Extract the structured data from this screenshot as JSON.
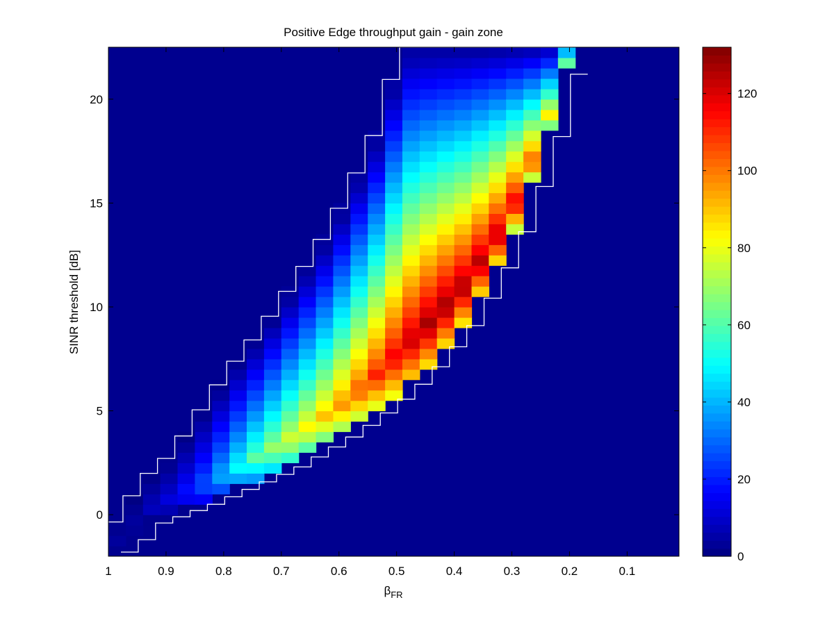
{
  "chart_data": {
    "type": "heatmap",
    "title": "Positive Edge throughput gain - gain zone",
    "xlabel": {
      "main": "β",
      "subscript": "FR"
    },
    "ylabel": "SINR threshold [dB]",
    "xlim": [
      1,
      0.01
    ],
    "x_reversed": true,
    "ylim": [
      -2,
      22.5
    ],
    "x_ticks": [
      1,
      0.9,
      0.8,
      0.7,
      0.6,
      0.5,
      0.4,
      0.3,
      0.2,
      0.1
    ],
    "x_tick_labels": [
      "1",
      "0.9",
      "0.8",
      "0.7",
      "0.6",
      "0.5",
      "0.4",
      "0.3",
      "0.2",
      "0.1"
    ],
    "y_ticks": [
      0,
      5,
      10,
      15,
      20
    ],
    "y_tick_labels": [
      "0",
      "5",
      "10",
      "15",
      "20"
    ],
    "colormap": "jet",
    "background_color": "#00008f",
    "boundary_color": "#ffffff",
    "colorbar": {
      "range": [
        0,
        132
      ],
      "ticks": [
        0,
        20,
        40,
        60,
        80,
        100,
        120
      ],
      "tick_labels": [
        "0",
        "20",
        "40",
        "60",
        "80",
        "100",
        "120"
      ],
      "placement": "right"
    },
    "grid": false,
    "gain_zone": {
      "description_of_axes": "beta in (0,1], SINR threshold in dB",
      "y_step_db": 0.5,
      "x_step": 0.03,
      "lower_boundary_points": [
        [
          1.0,
          -1.5
        ],
        [
          0.97,
          -0.9
        ],
        [
          0.94,
          -0.1
        ],
        [
          0.9,
          0.3
        ],
        [
          0.85,
          0.8
        ],
        [
          0.8,
          1.4
        ],
        [
          0.75,
          2.0
        ],
        [
          0.7,
          2.6
        ],
        [
          0.65,
          3.4
        ],
        [
          0.6,
          4.2
        ],
        [
          0.55,
          5.2
        ],
        [
          0.5,
          6.3
        ],
        [
          0.45,
          7.7
        ],
        [
          0.4,
          9.4
        ],
        [
          0.35,
          11.6
        ],
        [
          0.3,
          14.5
        ],
        [
          0.25,
          18.5
        ],
        [
          0.22,
          21.5
        ]
      ],
      "upper_boundary_points": [
        [
          1.0,
          -0.6
        ],
        [
          0.95,
          1.5
        ],
        [
          0.9,
          2.7
        ],
        [
          0.85,
          4.8
        ],
        [
          0.8,
          6.8
        ],
        [
          0.75,
          8.5
        ],
        [
          0.7,
          10.5
        ],
        [
          0.65,
          12.5
        ],
        [
          0.6,
          15.0
        ],
        [
          0.55,
          18.0
        ],
        [
          0.5,
          22.5
        ]
      ],
      "peak_points": [
        [
          0.97,
          5
        ],
        [
          0.9,
          14
        ],
        [
          0.85,
          28
        ],
        [
          0.8,
          48
        ],
        [
          0.75,
          65
        ],
        [
          0.7,
          78
        ],
        [
          0.65,
          88
        ],
        [
          0.6,
          100
        ],
        [
          0.55,
          112
        ],
        [
          0.5,
          122
        ],
        [
          0.45,
          130
        ],
        [
          0.4,
          128
        ],
        [
          0.35,
          126
        ],
        [
          0.3,
          118
        ],
        [
          0.25,
          88
        ],
        [
          0.22,
          82
        ]
      ],
      "peak_position_fraction": 0.1,
      "max_value": 132
    }
  }
}
